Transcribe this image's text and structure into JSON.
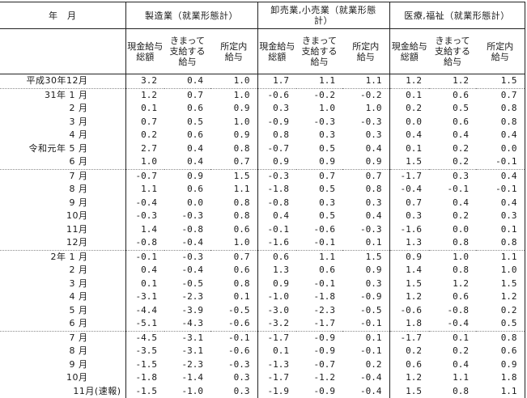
{
  "table": {
    "year_month_header": "年　月",
    "groups": [
      {
        "label": "製造業（就業形態計）"
      },
      {
        "label": "卸売業,小売業（就業形態\n計）"
      },
      {
        "label": "医療,福祉（就業形態計）"
      }
    ],
    "subcolumns": [
      "現金給与\n総額",
      "きまって\n支給する\n給与",
      "所定内\n給与"
    ],
    "rows": [
      {
        "label": "平成30年12月",
        "sep": false,
        "report": false,
        "values": [
          "3.2",
          "0.4",
          "1.0",
          "1.7",
          "1.1",
          "1.1",
          "1.2",
          "1.2",
          "1.5"
        ]
      },
      {
        "label": "31年 1 月",
        "sep": true,
        "report": false,
        "values": [
          "1.2",
          "0.7",
          "1.0",
          "-0.6",
          "-0.2",
          "-0.2",
          "0.1",
          "0.6",
          "0.7"
        ]
      },
      {
        "label": "2 月",
        "sep": false,
        "report": false,
        "values": [
          "0.1",
          "0.6",
          "0.9",
          "0.3",
          "1.0",
          "1.0",
          "0.2",
          "0.5",
          "0.8"
        ]
      },
      {
        "label": "3 月",
        "sep": false,
        "report": false,
        "values": [
          "0.7",
          "0.5",
          "1.0",
          "-0.9",
          "-0.3",
          "-0.3",
          "0.0",
          "0.6",
          "0.8"
        ]
      },
      {
        "label": "4 月",
        "sep": false,
        "report": false,
        "values": [
          "0.2",
          "0.6",
          "0.9",
          "0.8",
          "0.3",
          "0.3",
          "0.4",
          "0.4",
          "0.4"
        ]
      },
      {
        "label": "令和元年 5 月",
        "sep": false,
        "report": false,
        "values": [
          "2.7",
          "0.4",
          "0.8",
          "-0.7",
          "0.5",
          "0.4",
          "0.1",
          "0.2",
          "0.0"
        ]
      },
      {
        "label": "6 月",
        "sep": false,
        "report": false,
        "values": [
          "1.0",
          "0.4",
          "0.7",
          "0.9",
          "0.9",
          "0.9",
          "1.5",
          "0.2",
          "-0.1"
        ]
      },
      {
        "label": "7 月",
        "sep": true,
        "report": false,
        "values": [
          "-0.7",
          "0.9",
          "1.5",
          "-0.3",
          "0.7",
          "0.7",
          "-1.7",
          "0.3",
          "0.4"
        ]
      },
      {
        "label": "8 月",
        "sep": false,
        "report": false,
        "values": [
          "1.1",
          "0.6",
          "1.1",
          "-1.8",
          "0.5",
          "0.8",
          "-0.4",
          "-0.1",
          "-0.1"
        ]
      },
      {
        "label": "9 月",
        "sep": false,
        "report": false,
        "values": [
          "-0.4",
          "0.0",
          "0.8",
          "-0.8",
          "0.3",
          "0.3",
          "0.7",
          "0.4",
          "0.4"
        ]
      },
      {
        "label": "10月",
        "sep": false,
        "report": false,
        "values": [
          "-0.3",
          "-0.3",
          "0.8",
          "0.4",
          "0.5",
          "0.4",
          "0.3",
          "0.2",
          "0.3"
        ]
      },
      {
        "label": "11月",
        "sep": false,
        "report": false,
        "values": [
          "1.4",
          "-0.8",
          "0.6",
          "-0.1",
          "-0.6",
          "-0.3",
          "-1.6",
          "0.0",
          "0.1"
        ]
      },
      {
        "label": "12月",
        "sep": false,
        "report": false,
        "values": [
          "-0.8",
          "-0.4",
          "1.0",
          "-1.6",
          "-0.1",
          "0.1",
          "1.3",
          "0.8",
          "0.8"
        ]
      },
      {
        "label": "2年 1 月",
        "sep": true,
        "report": false,
        "values": [
          "-0.1",
          "-0.3",
          "0.7",
          "0.6",
          "1.1",
          "1.5",
          "0.9",
          "1.0",
          "1.1"
        ]
      },
      {
        "label": "2 月",
        "sep": false,
        "report": false,
        "values": [
          "0.4",
          "-0.4",
          "0.6",
          "1.3",
          "0.6",
          "0.9",
          "1.4",
          "0.8",
          "1.0"
        ]
      },
      {
        "label": "3 月",
        "sep": false,
        "report": false,
        "values": [
          "0.1",
          "-0.5",
          "0.8",
          "0.9",
          "-0.1",
          "0.3",
          "1.5",
          "1.2",
          "1.5"
        ]
      },
      {
        "label": "4 月",
        "sep": false,
        "report": false,
        "values": [
          "-3.1",
          "-2.3",
          "0.1",
          "-1.0",
          "-1.8",
          "-0.9",
          "1.2",
          "0.6",
          "1.2"
        ]
      },
      {
        "label": "5 月",
        "sep": false,
        "report": false,
        "values": [
          "-4.4",
          "-3.9",
          "-0.5",
          "-3.0",
          "-2.3",
          "-0.5",
          "-0.6",
          "-0.8",
          "0.2"
        ]
      },
      {
        "label": "6 月",
        "sep": false,
        "report": false,
        "values": [
          "-5.1",
          "-4.3",
          "-0.6",
          "-3.2",
          "-1.7",
          "-0.1",
          "1.8",
          "-0.4",
          "0.5"
        ]
      },
      {
        "label": "7 月",
        "sep": true,
        "report": false,
        "values": [
          "-4.5",
          "-3.1",
          "-0.1",
          "-1.7",
          "-0.9",
          "0.1",
          "-1.7",
          "0.1",
          "0.8"
        ]
      },
      {
        "label": "8 月",
        "sep": false,
        "report": false,
        "values": [
          "-3.5",
          "-3.1",
          "-0.6",
          "0.1",
          "-0.9",
          "-0.1",
          "0.2",
          "0.2",
          "0.6"
        ]
      },
      {
        "label": "9 月",
        "sep": false,
        "report": false,
        "values": [
          "-1.5",
          "-2.3",
          "-0.3",
          "-1.3",
          "-0.7",
          "0.2",
          "0.6",
          "0.4",
          "0.9"
        ]
      },
      {
        "label": "10月",
        "sep": false,
        "report": false,
        "values": [
          "-1.8",
          "-1.4",
          "0.3",
          "-1.7",
          "-1.2",
          "-0.4",
          "1.2",
          "1.1",
          "1.8"
        ]
      },
      {
        "label": "11月(速報)",
        "sep": false,
        "report": true,
        "values": [
          "-1.5",
          "-1.0",
          "0.3",
          "-1.9",
          "-0.9",
          "-0.4",
          "1.5",
          "0.8",
          "1.1"
        ]
      }
    ]
  }
}
